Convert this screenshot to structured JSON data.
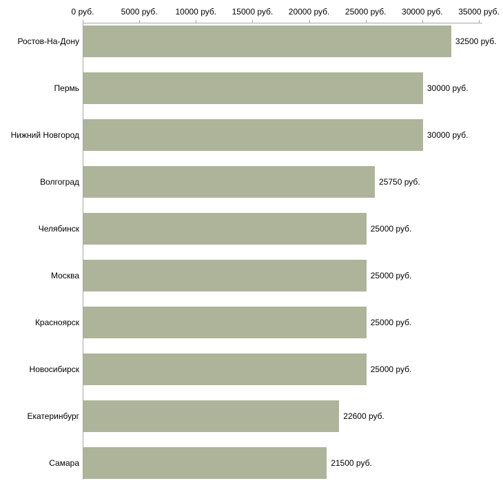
{
  "chart_data": {
    "type": "bar",
    "orientation": "horizontal",
    "title": "",
    "xlabel": "",
    "ylabel": "",
    "categories": [
      "Ростов-На-Дону",
      "Пермь",
      "Нижний Новгород",
      "Волгоград",
      "Челябинск",
      "Москва",
      "Красноярск",
      "Новосибирск",
      "Екатеринбург",
      "Самара"
    ],
    "values": [
      32500,
      30000,
      30000,
      25750,
      25000,
      25000,
      25000,
      25000,
      22600,
      21500
    ],
    "value_labels": [
      "32500 руб.",
      "30000 руб.",
      "30000 руб.",
      "25750 руб.",
      "25000 руб.",
      "25000 руб.",
      "25000 руб.",
      "25000 руб.",
      "22600 руб.",
      "21500 руб."
    ],
    "x_ticks": [
      0,
      5000,
      10000,
      15000,
      20000,
      25000,
      30000,
      35000
    ],
    "x_tick_labels": [
      "0 руб.",
      "5000 руб.",
      "10000 руб.",
      "15000 руб.",
      "20000 руб.",
      "25000 руб.",
      "30000 руб.",
      "35000 руб."
    ],
    "xlim": [
      0,
      35000
    ],
    "grid": false,
    "legend": false,
    "axis_position": "top",
    "colors": {
      "bar": "#aeb49a",
      "axis": "#a6a6a6",
      "text": "#000000",
      "background": "#ffffff"
    }
  }
}
